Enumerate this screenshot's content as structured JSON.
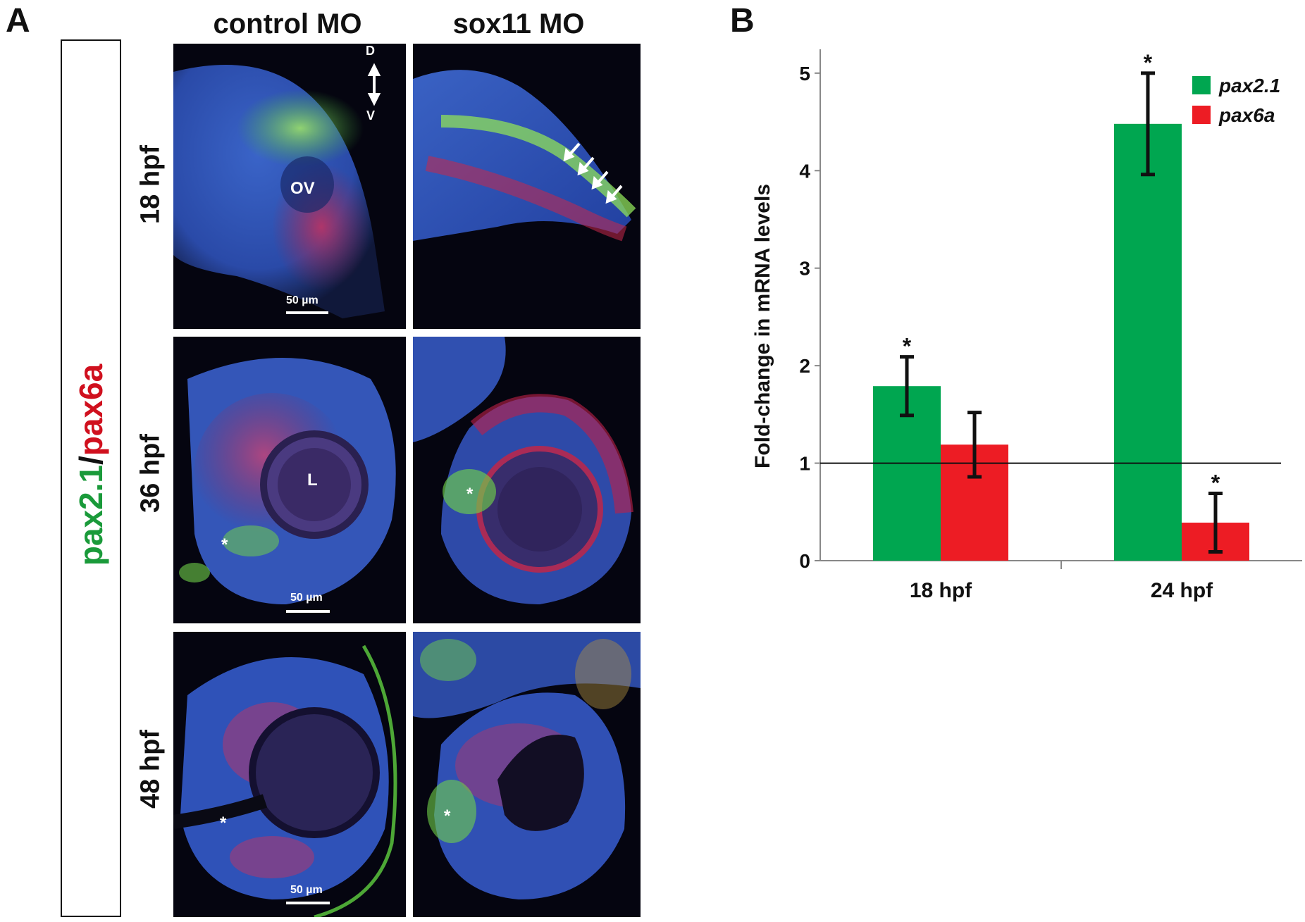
{
  "panel_a": {
    "letter": "A",
    "stain_label_green": "pax2.1",
    "stain_label_sep": "/",
    "stain_label_red": "pax6a",
    "columns": [
      "control MO",
      "sox11 MO"
    ],
    "rows": [
      "18 hpf",
      "36 hpf",
      "48 hpf"
    ],
    "axis_d": "D",
    "axis_v": "V",
    "label_ov": "OV",
    "label_lens": "L",
    "asterisk": "*",
    "scale_bar": "50 µm"
  },
  "panel_b": {
    "letter": "B"
  },
  "chart_data": {
    "type": "bar",
    "categories": [
      "18 hpf",
      "24 hpf"
    ],
    "ylabel": "Fold-change in mRNA levels",
    "xlabel": "",
    "ylim": [
      0,
      5.1
    ],
    "yticks": [
      0,
      1,
      2,
      3,
      4,
      5
    ],
    "reference_line": 1,
    "legend_position": "top-right",
    "grid": false,
    "series": [
      {
        "name": "pax2.1",
        "color": "#00a650",
        "values": [
          1.79,
          4.48
        ],
        "errors": [
          0.3,
          0.52
        ],
        "significant": [
          true,
          true
        ]
      },
      {
        "name": "pax6a",
        "color": "#ed1c24",
        "values": [
          1.19,
          0.39
        ],
        "errors": [
          0.33,
          0.3
        ],
        "significant": [
          false,
          true
        ]
      }
    ],
    "significance_marker": "*"
  }
}
